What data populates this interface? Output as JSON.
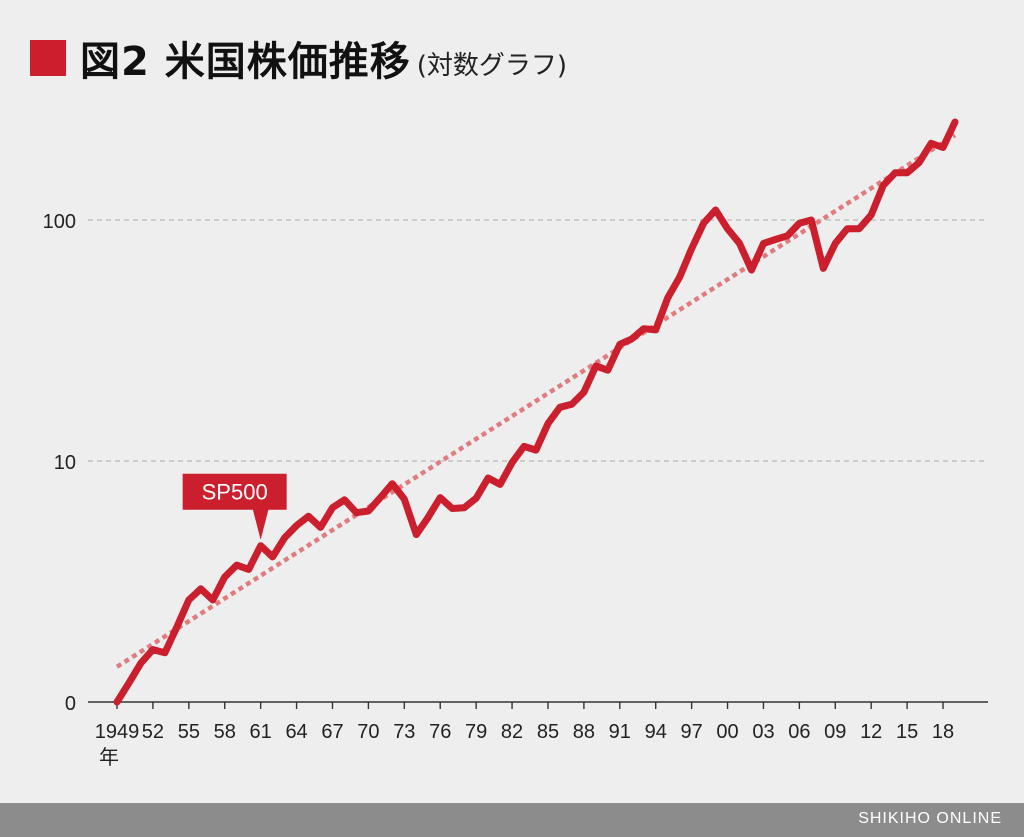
{
  "title": {
    "main": "図2 米国株価推移",
    "sub": "(対数グラフ)"
  },
  "footer": {
    "brand": "SHIKIHO ONLINE"
  },
  "colors": {
    "series": "#cc1f2d",
    "trend": "#e07b80",
    "grid": "#b8b8b8",
    "axis": "#333333",
    "footer": "#8c8c8c"
  },
  "chart_data": {
    "type": "line",
    "y_scale": "log",
    "grid": "horizontal dashed",
    "y_ticks": [
      {
        "value": 1,
        "label": "0"
      },
      {
        "value": 10,
        "label": "10"
      },
      {
        "value": 100,
        "label": "100"
      }
    ],
    "x_range": [
      1949,
      2019
    ],
    "x_ticks": [
      {
        "year": 1949,
        "label": "1949"
      },
      {
        "year": 1952,
        "label": "52"
      },
      {
        "year": 1955,
        "label": "55"
      },
      {
        "year": 1958,
        "label": "58"
      },
      {
        "year": 1961,
        "label": "61"
      },
      {
        "year": 1964,
        "label": "64"
      },
      {
        "year": 1967,
        "label": "67"
      },
      {
        "year": 1970,
        "label": "70"
      },
      {
        "year": 1973,
        "label": "73"
      },
      {
        "year": 1976,
        "label": "76"
      },
      {
        "year": 1979,
        "label": "79"
      },
      {
        "year": 1982,
        "label": "82"
      },
      {
        "year": 1985,
        "label": "85"
      },
      {
        "year": 1988,
        "label": "88"
      },
      {
        "year": 1991,
        "label": "91"
      },
      {
        "year": 1994,
        "label": "94"
      },
      {
        "year": 1997,
        "label": "97"
      },
      {
        "year": 2000,
        "label": "00"
      },
      {
        "year": 2003,
        "label": "03"
      },
      {
        "year": 2006,
        "label": "06"
      },
      {
        "year": 2009,
        "label": "09"
      },
      {
        "year": 2012,
        "label": "12"
      },
      {
        "year": 2015,
        "label": "15"
      },
      {
        "year": 2018,
        "label": "18"
      }
    ],
    "x_unit_label": "年",
    "series": [
      {
        "name": "SP500",
        "points": [
          [
            1949,
            1.0
          ],
          [
            1950,
            1.2
          ],
          [
            1951,
            1.45
          ],
          [
            1952,
            1.65
          ],
          [
            1953,
            1.6
          ],
          [
            1954,
            2.05
          ],
          [
            1955,
            2.65
          ],
          [
            1956,
            2.95
          ],
          [
            1957,
            2.65
          ],
          [
            1958,
            3.3
          ],
          [
            1959,
            3.7
          ],
          [
            1960,
            3.55
          ],
          [
            1961,
            4.45
          ],
          [
            1962,
            4.0
          ],
          [
            1963,
            4.8
          ],
          [
            1964,
            5.4
          ],
          [
            1965,
            5.9
          ],
          [
            1966,
            5.3
          ],
          [
            1967,
            6.4
          ],
          [
            1968,
            6.9
          ],
          [
            1969,
            6.1
          ],
          [
            1970,
            6.2
          ],
          [
            1971,
            7.05
          ],
          [
            1972,
            8.05
          ],
          [
            1973,
            6.95
          ],
          [
            1974,
            4.95
          ],
          [
            1975,
            5.85
          ],
          [
            1976,
            7.05
          ],
          [
            1977,
            6.35
          ],
          [
            1978,
            6.4
          ],
          [
            1979,
            7.0
          ],
          [
            1980,
            8.5
          ],
          [
            1981,
            8.0
          ],
          [
            1982,
            9.85
          ],
          [
            1983,
            11.5
          ],
          [
            1984,
            11.1
          ],
          [
            1985,
            14.3
          ],
          [
            1986,
            16.7
          ],
          [
            1987,
            17.2
          ],
          [
            1988,
            19.3
          ],
          [
            1989,
            24.8
          ],
          [
            1990,
            23.8
          ],
          [
            1991,
            30.5
          ],
          [
            1992,
            32.1
          ],
          [
            1993,
            35.4
          ],
          [
            1994,
            35.0
          ],
          [
            1995,
            47.5
          ],
          [
            1996,
            58.0
          ],
          [
            1997,
            76.0
          ],
          [
            1998,
            97.0
          ],
          [
            1999,
            110.0
          ],
          [
            2000,
            92.0
          ],
          [
            2001,
            80.0
          ],
          [
            2002,
            62.0
          ],
          [
            2003,
            80.0
          ],
          [
            2004,
            83.0
          ],
          [
            2005,
            86.0
          ],
          [
            2006,
            97.0
          ],
          [
            2007,
            100.0
          ],
          [
            2008,
            63.0
          ],
          [
            2009,
            80.0
          ],
          [
            2010,
            92.0
          ],
          [
            2011,
            92.0
          ],
          [
            2012,
            105.0
          ],
          [
            2013,
            139.0
          ],
          [
            2014,
            157.0
          ],
          [
            2015,
            157.0
          ],
          [
            2016,
            173.0
          ],
          [
            2017,
            208.0
          ],
          [
            2018,
            200.0
          ],
          [
            2019,
            255.0
          ]
        ]
      }
    ],
    "trendline": {
      "style": "dotted",
      "from": [
        1949,
        1.4
      ],
      "to": [
        2019,
        225
      ]
    },
    "annotation": {
      "text": "SP500",
      "points_to": [
        1961,
        4.45
      ]
    }
  }
}
